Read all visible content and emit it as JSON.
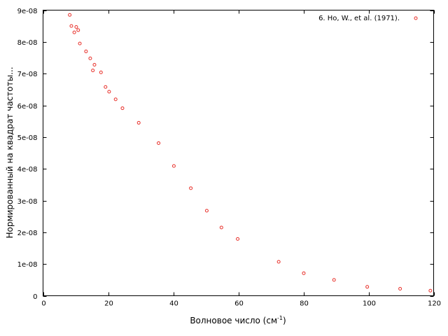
{
  "chart_data": {
    "type": "scatter",
    "title": "",
    "xlabel": "Волновое число (см",
    "xlabel_unit_sup": "-1",
    "xlabel_suffix": ")",
    "ylabel": "Нормированный на квадрат частоты...",
    "xlim": [
      0,
      120
    ],
    "ylim": [
      0,
      9e-08
    ],
    "xticks": [
      0,
      20,
      40,
      60,
      80,
      100,
      120
    ],
    "xtick_labels": [
      "0",
      "20",
      "40",
      "60",
      "80",
      "100",
      "120"
    ],
    "yticks": [
      0,
      1e-08,
      2e-08,
      3e-08,
      4e-08,
      5e-08,
      6e-08,
      7e-08,
      8e-08,
      9e-08
    ],
    "ytick_labels": [
      "0",
      "1e-08",
      "2e-08",
      "3e-08",
      "4e-08",
      "5e-08",
      "6e-08",
      "7e-08",
      "8e-08",
      "9e-08"
    ],
    "grid": false,
    "legend_position": "top-right",
    "marker_color": "#e8302a",
    "series": [
      {
        "name": "6. Ho, W., et al. (1971).",
        "x": [
          8.2,
          8.7,
          9.6,
          10.2,
          10.8,
          11.3,
          13.2,
          14.5,
          15.3,
          15.8,
          17.8,
          19.2,
          20.3,
          22.3,
          24.4,
          29.4,
          35.5,
          40.2,
          45.4,
          50.3,
          54.8,
          59.8,
          72.4,
          80.1,
          89.4,
          99.6,
          109.7,
          119.0
        ],
        "y": [
          8.85e-08,
          8.5e-08,
          8.3e-08,
          8.47e-08,
          8.37e-08,
          7.95e-08,
          7.7e-08,
          7.48e-08,
          7.1e-08,
          7.28e-08,
          7.04e-08,
          6.58e-08,
          6.43e-08,
          6.19e-08,
          5.91e-08,
          5.45e-08,
          4.81e-08,
          4.09e-08,
          3.39e-08,
          2.68e-08,
          2.15e-08,
          1.79e-08,
          1.07e-08,
          7.1e-09,
          5e-09,
          2.8e-09,
          2.2e-09,
          1.6e-09
        ]
      }
    ]
  }
}
